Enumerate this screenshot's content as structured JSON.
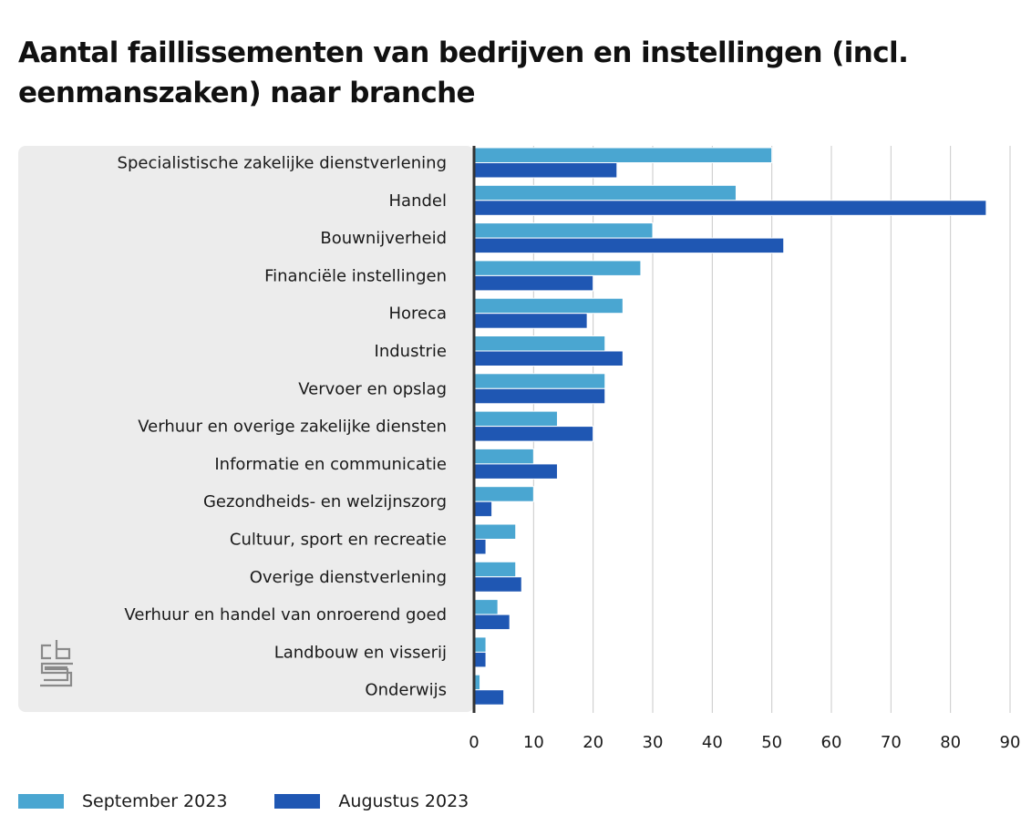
{
  "colors": {
    "september": "#4aa6d1",
    "augustus": "#1f57b3",
    "panel": "#ececec",
    "grid": "#c9c9c9",
    "axis": "#333333"
  },
  "chart_data": {
    "type": "bar",
    "orientation": "horizontal",
    "title": "Aantal faillissementen van bedrijven en instellingen (incl. eenmanszaken) naar branche",
    "categories": [
      "Specialistische zakelijke dienstverlening",
      "Handel",
      "Bouwnijverheid",
      "Financiële instellingen",
      "Horeca",
      "Industrie",
      "Vervoer en opslag",
      "Verhuur en overige zakelijke diensten",
      "Informatie en communicatie",
      "Gezondheids- en welzijnszorg",
      "Cultuur, sport en recreatie",
      "Overige dienstverlening",
      "Verhuur en handel van onroerend goed",
      "Landbouw en visserij",
      "Onderwijs"
    ],
    "series": [
      {
        "name": "September 2023",
        "color": "#4aa6d1",
        "values": [
          50,
          44,
          30,
          28,
          25,
          22,
          22,
          14,
          10,
          10,
          7,
          7,
          4,
          2,
          1
        ]
      },
      {
        "name": "Augustus 2023",
        "color": "#1f57b3",
        "values": [
          24,
          86,
          52,
          20,
          19,
          25,
          22,
          20,
          14,
          3,
          2,
          8,
          6,
          2,
          5
        ]
      }
    ],
    "xlim": [
      0,
      90
    ],
    "xticks": [
      "0",
      "10",
      "20",
      "30",
      "40",
      "50",
      "60",
      "70",
      "80",
      "90"
    ],
    "grid": true,
    "legend_position": "bottom-left"
  },
  "legend": {
    "september_label": "September 2023",
    "augustus_label": "Augustus 2023"
  },
  "logo": {
    "text": "cbs",
    "icon": "cbs-logo-icon"
  }
}
